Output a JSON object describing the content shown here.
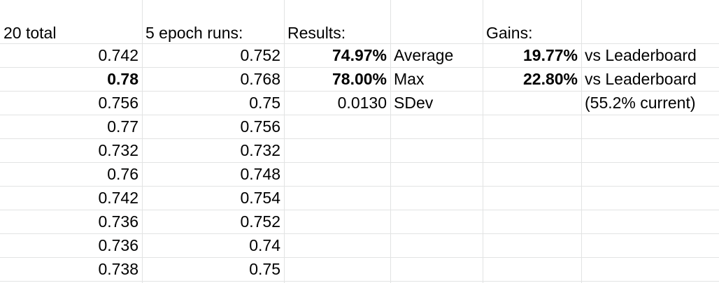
{
  "headers": {
    "col_a": "20 total",
    "col_b": "5 epoch runs:",
    "col_c": "Results:",
    "col_e": "Gains:"
  },
  "col_a_values": [
    "0.742",
    "0.78",
    "0.756",
    "0.77",
    "0.732",
    "0.76",
    "0.742",
    "0.736",
    "0.736",
    "0.738"
  ],
  "col_b_values": [
    "0.752",
    "0.768",
    "0.75",
    "0.756",
    "0.732",
    "0.748",
    "0.754",
    "0.752",
    "0.74",
    "0.75"
  ],
  "results": [
    {
      "value": "74.97%",
      "label": "Average"
    },
    {
      "value": "78.00%",
      "label": "Max"
    },
    {
      "value": "0.0130",
      "label": "SDev"
    }
  ],
  "gains": [
    {
      "value": "19.77%",
      "label": "vs Leaderboard"
    },
    {
      "value": "22.80%",
      "label": "vs Leaderboard"
    },
    {
      "value": "",
      "label": "(55.2% current)"
    }
  ],
  "colors": {
    "gridline": "#e2e3e3",
    "text": "#000000",
    "background": "#ffffff"
  }
}
